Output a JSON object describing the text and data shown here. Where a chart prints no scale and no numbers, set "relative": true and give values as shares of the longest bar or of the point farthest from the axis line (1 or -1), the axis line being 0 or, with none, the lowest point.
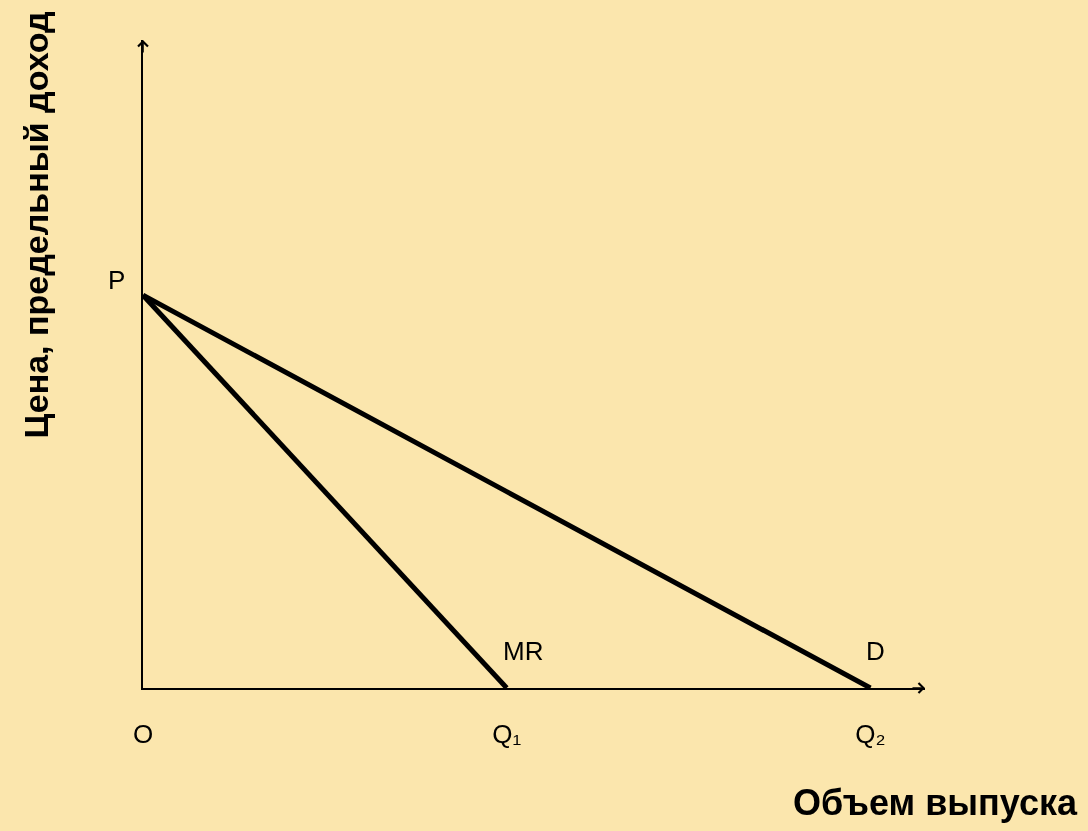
{
  "chart_data": {
    "type": "line",
    "relative": true,
    "ylabel": "Цена, предельный доход",
    "xlabel": "Объем выпуска",
    "categories": [
      "O",
      "Q₁",
      "Q₂"
    ],
    "series": [
      {
        "name": "MR",
        "color": "#000000",
        "values": [
          1,
          0,
          null
        ]
      },
      {
        "name": "D",
        "color": "#000000",
        "values": [
          1,
          0.5,
          0
        ]
      }
    ],
    "annotations": [
      "P"
    ],
    "grid": false,
    "legend": false,
    "marker": "none",
    "line_style": "solid"
  }
}
